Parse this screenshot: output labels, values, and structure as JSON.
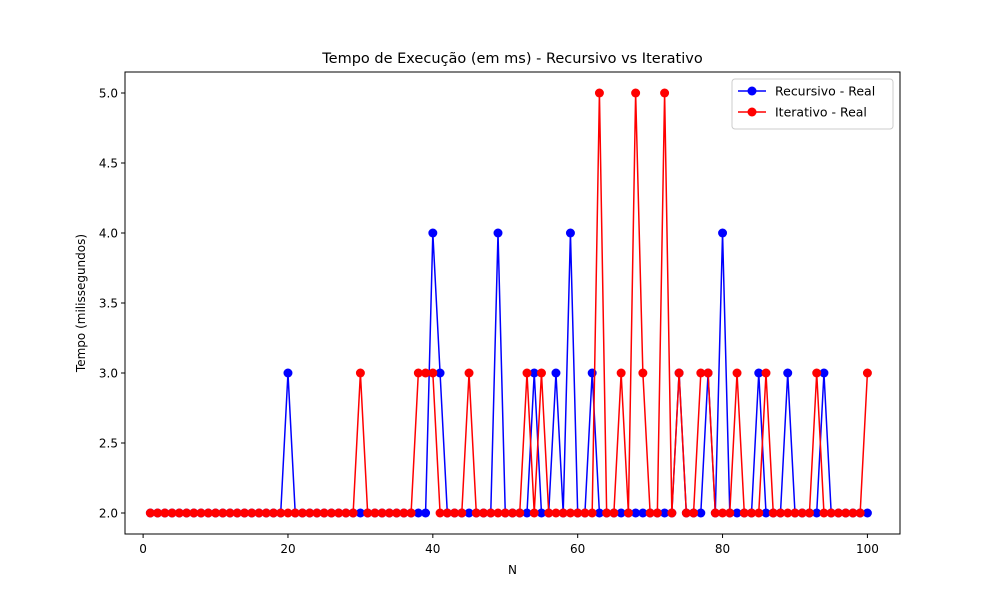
{
  "chart_data": {
    "type": "line",
    "title": "Tempo de Execução (em ms) - Recursivo vs Iterativo",
    "xlabel": "N",
    "ylabel": "Tempo (milissegundos)",
    "xlim": [
      -2.5,
      104.5
    ],
    "ylim": [
      1.85,
      5.15
    ],
    "x_ticks": [
      0,
      20,
      40,
      60,
      80,
      100
    ],
    "y_ticks": [
      2.0,
      2.5,
      3.0,
      3.5,
      4.0,
      4.5,
      5.0
    ],
    "grid": false,
    "legend_position": "top-right",
    "x": [
      1,
      2,
      3,
      4,
      5,
      6,
      7,
      8,
      9,
      10,
      11,
      12,
      13,
      14,
      15,
      16,
      17,
      18,
      19,
      20,
      21,
      22,
      23,
      24,
      25,
      26,
      27,
      28,
      29,
      30,
      31,
      32,
      33,
      34,
      35,
      36,
      37,
      38,
      39,
      40,
      41,
      42,
      43,
      44,
      45,
      46,
      47,
      48,
      49,
      50,
      51,
      52,
      53,
      54,
      55,
      56,
      57,
      58,
      59,
      60,
      61,
      62,
      63,
      64,
      65,
      66,
      67,
      68,
      69,
      70,
      71,
      72,
      73,
      74,
      75,
      76,
      77,
      78,
      79,
      80,
      81,
      82,
      83,
      84,
      85,
      86,
      87,
      88,
      89,
      90,
      91,
      92,
      93,
      94,
      95,
      96,
      97,
      98,
      99,
      100
    ],
    "series": [
      {
        "name": "Recursivo - Real",
        "color": "#0000ff",
        "values": [
          2,
          2,
          2,
          2,
          2,
          2,
          2,
          2,
          2,
          2,
          2,
          2,
          2,
          2,
          2,
          2,
          2,
          2,
          2,
          3,
          2,
          2,
          2,
          2,
          2,
          2,
          2,
          2,
          2,
          2,
          2,
          2,
          2,
          2,
          2,
          2,
          2,
          2,
          2,
          4,
          3,
          2,
          2,
          2,
          2,
          2,
          2,
          2,
          4,
          2,
          2,
          2,
          2,
          3,
          2,
          2,
          3,
          2,
          4,
          2,
          2,
          3,
          2,
          2,
          2,
          2,
          2,
          2,
          2,
          2,
          2,
          2,
          2,
          3,
          2,
          2,
          2,
          3,
          2,
          4,
          2,
          2,
          2,
          2,
          3,
          2,
          2,
          2,
          3,
          2,
          2,
          2,
          2,
          3,
          2,
          2,
          2,
          2,
          2,
          2
        ]
      },
      {
        "name": "Iterativo - Real",
        "color": "#ff0000",
        "values": [
          2,
          2,
          2,
          2,
          2,
          2,
          2,
          2,
          2,
          2,
          2,
          2,
          2,
          2,
          2,
          2,
          2,
          2,
          2,
          2,
          2,
          2,
          2,
          2,
          2,
          2,
          2,
          2,
          2,
          3,
          2,
          2,
          2,
          2,
          2,
          2,
          2,
          3,
          3,
          3,
          2,
          2,
          2,
          2,
          3,
          2,
          2,
          2,
          2,
          2,
          2,
          2,
          3,
          2,
          3,
          2,
          2,
          2,
          2,
          2,
          2,
          2,
          5,
          2,
          2,
          3,
          2,
          5,
          3,
          2,
          2,
          5,
          2,
          3,
          2,
          2,
          3,
          3,
          2,
          2,
          2,
          3,
          2,
          2,
          2,
          3,
          2,
          2,
          2,
          2,
          2,
          2,
          3,
          2,
          2,
          2,
          2,
          2,
          2,
          3
        ]
      }
    ]
  }
}
